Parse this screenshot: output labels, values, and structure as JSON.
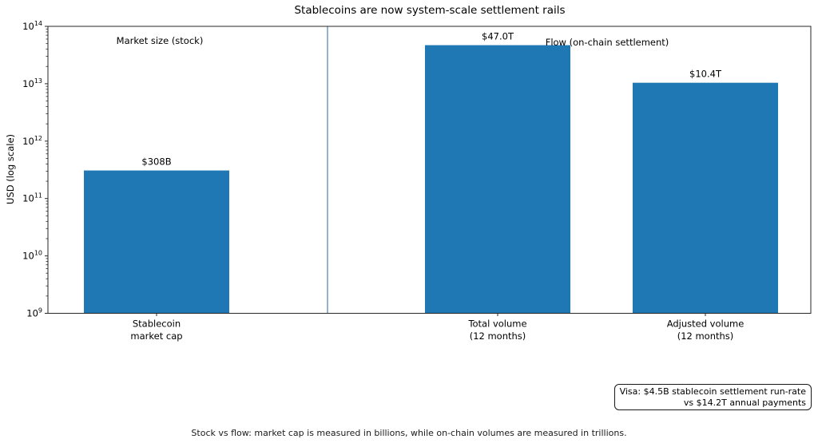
{
  "chart_data": {
    "type": "bar",
    "title": "Stablecoins are now system-scale settlement rails",
    "ylabel": "USD (log scale)",
    "yscale": "log",
    "ylim": [
      1000000000,
      100000000000000
    ],
    "y_tick_exponents": [
      9,
      10,
      11,
      12,
      13,
      14
    ],
    "categories": [
      [
        "Stablecoin",
        "market cap"
      ],
      [
        "Total volume",
        "(12 months)"
      ],
      [
        "Adjusted volume",
        "(12 months)"
      ]
    ],
    "values": [
      308000000000,
      47000000000000,
      10400000000000
    ],
    "value_labels": [
      "$308B",
      "$47.0T",
      "$10.4T"
    ],
    "bar_color": "#1f77b4",
    "divider_color": "#4682b4",
    "grid": "off",
    "group_annotations": [
      {
        "label": "Market size (stock)"
      },
      {
        "label": "Flow (on-chain settlement)"
      }
    ],
    "note_box": {
      "lines": [
        "Visa: $4.5B stablecoin settlement run-rate",
        "vs $14.2T annual payments"
      ]
    },
    "caption": "Stock vs flow: market cap is measured in billions, while on-chain volumes are measured in trillions."
  }
}
